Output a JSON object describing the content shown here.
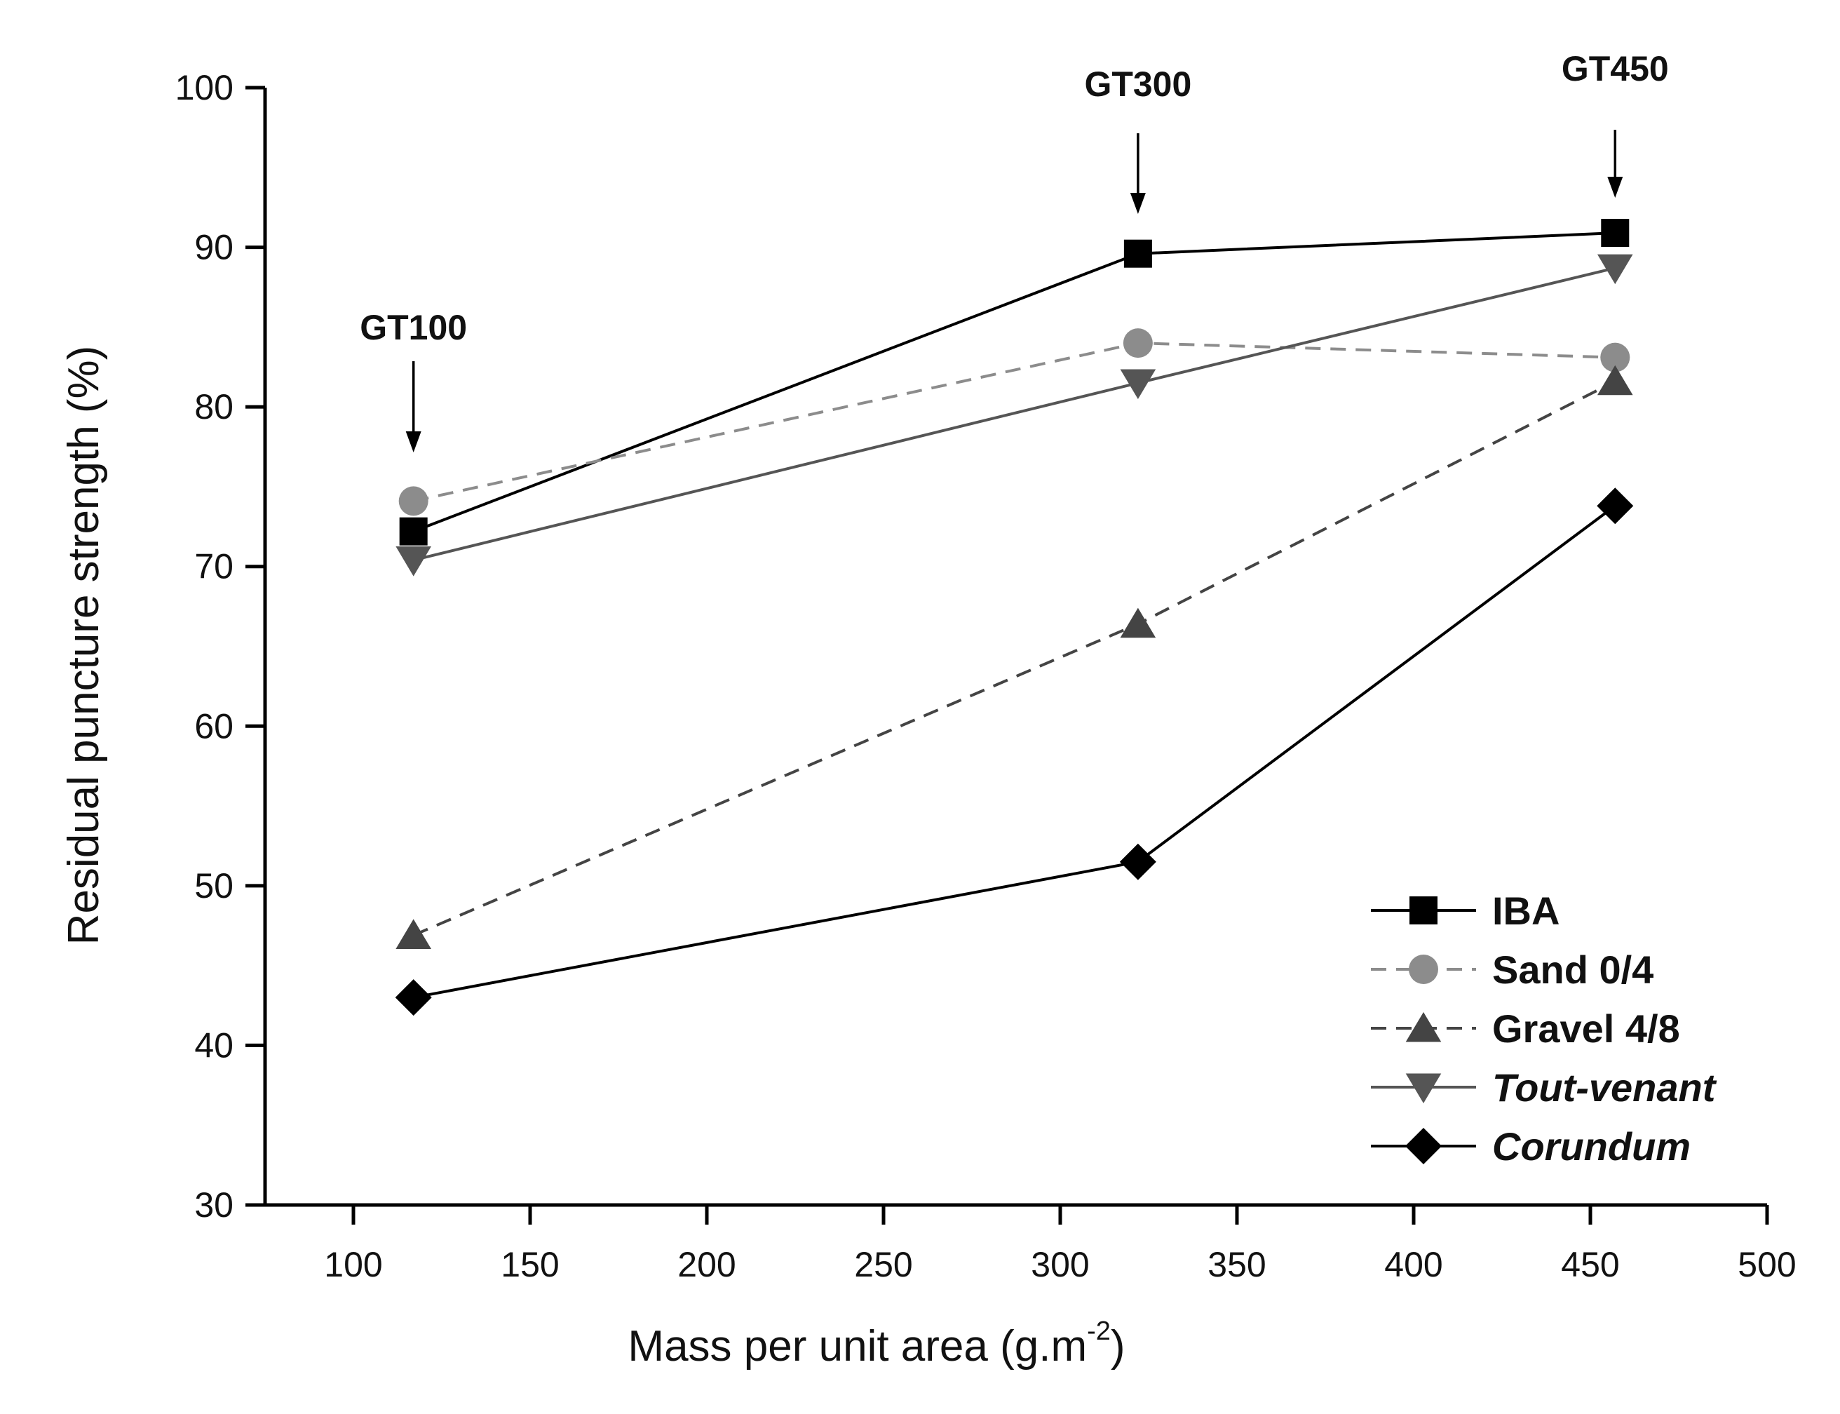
{
  "chart_data": {
    "type": "line",
    "title": "",
    "xlabel": "Mass per unit area (g.m",
    "xlabel_sup": "-2",
    "xlabel_end": ")",
    "ylabel": "Residual puncture strength (%)",
    "xlim": [
      75,
      500
    ],
    "ylim": [
      30,
      100
    ],
    "xticks": [
      100,
      150,
      200,
      250,
      300,
      350,
      400,
      450,
      500
    ],
    "yticks": [
      30,
      40,
      50,
      60,
      70,
      80,
      90,
      100
    ],
    "x": [
      117,
      322,
      457
    ],
    "series": [
      {
        "name": "IBA",
        "values": [
          72.2,
          89.6,
          90.9
        ],
        "marker": "square",
        "color": "#000000",
        "dash": "solid",
        "italic": false
      },
      {
        "name": "Sand 0/4",
        "values": [
          74.1,
          84.0,
          83.1
        ],
        "marker": "circle",
        "color": "#8c8c8c",
        "dash": "dashed",
        "italic": false
      },
      {
        "name": "Gravel 4/8",
        "values": [
          46.9,
          66.4,
          81.6
        ],
        "marker": "triangle-up",
        "color": "#444444",
        "dash": "dashed",
        "italic": false
      },
      {
        "name": "Tout-venant",
        "values": [
          70.4,
          81.5,
          88.7
        ],
        "marker": "triangle-down",
        "color": "#555555",
        "dash": "solid",
        "italic": true
      },
      {
        "name": "Corundum",
        "values": [
          43.0,
          51.5,
          73.8
        ],
        "marker": "diamond",
        "color": "#000000",
        "dash": "solid",
        "italic": true
      }
    ],
    "annotations": [
      {
        "text": "GT100",
        "x": 117
      },
      {
        "text": "GT300",
        "x": 322
      },
      {
        "text": "GT450",
        "x": 457
      }
    ],
    "legend_position": "bottom-right",
    "grid": false
  }
}
